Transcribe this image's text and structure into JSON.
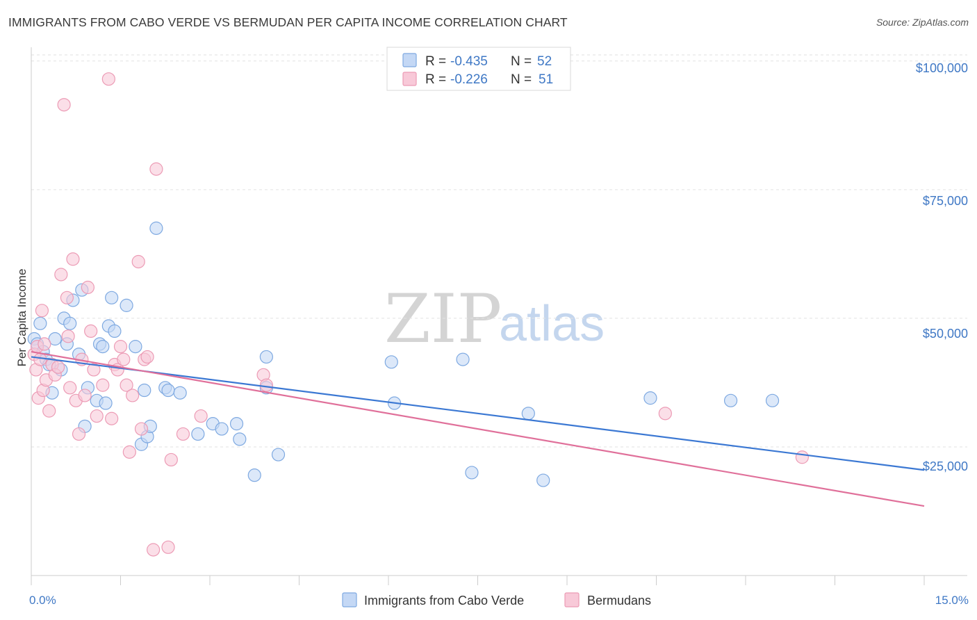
{
  "title": "IMMIGRANTS FROM CABO VERDE VS BERMUDAN PER CAPITA INCOME CORRELATION CHART",
  "source": "Source: ZipAtlas.com",
  "watermark": {
    "zip": "ZIP",
    "atlas": "atlas"
  },
  "colors": {
    "blue_fill": "#c4d8f5",
    "blue_stroke": "#7ea9e1",
    "blue_line": "#3b78d3",
    "pink_fill": "#f8c9d8",
    "pink_stroke": "#ec9bb5",
    "pink_line": "#e0709a",
    "grid": "#e2e2e2",
    "axis": "#cccccc",
    "tick_text": "#3f78c5"
  },
  "legend": {
    "rows": [
      {
        "r_label": "R =",
        "r_value": "-0.435",
        "n_label": "N =",
        "n_value": "52",
        "series": "blue"
      },
      {
        "r_label": "R =",
        "r_value": "-0.226",
        "n_label": "N =",
        "n_value": "51",
        "series": "pink"
      }
    ]
  },
  "bottom_legend": [
    "Immigrants from Cabo Verde",
    "Bermudans"
  ],
  "chart_data": {
    "type": "scatter",
    "title": "IMMIGRANTS FROM CABO VERDE VS BERMUDAN PER CAPITA INCOME CORRELATION CHART",
    "xlabel": "",
    "ylabel": "Per Capita Income",
    "xlim": [
      0,
      15
    ],
    "ylim": [
      0,
      102000
    ],
    "x_tick_labels": [
      "0.0%",
      "15.0%"
    ],
    "y_ticks": [
      25000,
      50000,
      75000,
      100000
    ],
    "y_tick_labels": [
      "$25,000",
      "$50,000",
      "$75,000",
      "$100,000"
    ],
    "series": [
      {
        "name": "Immigrants from Cabo Verde",
        "color": "blue",
        "trend": {
          "x0": 0,
          "y0": 42500,
          "x1": 15,
          "y1": 20500
        },
        "points": [
          [
            0.05,
            46000
          ],
          [
            0.1,
            45000
          ],
          [
            0.15,
            49000
          ],
          [
            0.2,
            43500
          ],
          [
            0.25,
            42000
          ],
          [
            0.3,
            41000
          ],
          [
            0.35,
            35500
          ],
          [
            0.4,
            46000
          ],
          [
            0.5,
            40000
          ],
          [
            0.55,
            50000
          ],
          [
            0.6,
            45000
          ],
          [
            0.65,
            49000
          ],
          [
            0.7,
            53500
          ],
          [
            0.8,
            43000
          ],
          [
            0.85,
            55500
          ],
          [
            0.9,
            29000
          ],
          [
            0.95,
            36500
          ],
          [
            1.1,
            34000
          ],
          [
            1.15,
            45000
          ],
          [
            1.2,
            44500
          ],
          [
            1.25,
            33500
          ],
          [
            1.3,
            48500
          ],
          [
            1.35,
            54000
          ],
          [
            1.4,
            47500
          ],
          [
            1.6,
            52500
          ],
          [
            1.75,
            44500
          ],
          [
            1.85,
            25500
          ],
          [
            1.9,
            36000
          ],
          [
            1.95,
            27000
          ],
          [
            2.0,
            29000
          ],
          [
            2.1,
            67500
          ],
          [
            2.25,
            36500
          ],
          [
            2.3,
            36000
          ],
          [
            2.5,
            35500
          ],
          [
            2.8,
            27500
          ],
          [
            3.05,
            29500
          ],
          [
            3.2,
            28500
          ],
          [
            3.45,
            29500
          ],
          [
            3.5,
            26500
          ],
          [
            3.75,
            19500
          ],
          [
            3.95,
            42500
          ],
          [
            3.95,
            36500
          ],
          [
            4.15,
            23500
          ],
          [
            6.05,
            41500
          ],
          [
            6.1,
            33500
          ],
          [
            7.25,
            42000
          ],
          [
            7.4,
            20000
          ],
          [
            8.35,
            31500
          ],
          [
            8.6,
            18500
          ],
          [
            10.4,
            34500
          ],
          [
            11.75,
            34000
          ],
          [
            12.45,
            34000
          ]
        ]
      },
      {
        "name": "Bermudans",
        "color": "pink",
        "trend": {
          "x0": 0,
          "y0": 43500,
          "x1": 15,
          "y1": 13500
        },
        "points": [
          [
            0.05,
            43000
          ],
          [
            0.08,
            40000
          ],
          [
            0.1,
            44500
          ],
          [
            0.12,
            34500
          ],
          [
            0.15,
            42000
          ],
          [
            0.18,
            51500
          ],
          [
            0.2,
            36000
          ],
          [
            0.22,
            45000
          ],
          [
            0.25,
            38000
          ],
          [
            0.3,
            32000
          ],
          [
            0.35,
            41000
          ],
          [
            0.4,
            39000
          ],
          [
            0.45,
            40500
          ],
          [
            0.5,
            58500
          ],
          [
            0.55,
            91500
          ],
          [
            0.6,
            54000
          ],
          [
            0.62,
            46500
          ],
          [
            0.65,
            36500
          ],
          [
            0.7,
            61500
          ],
          [
            0.75,
            34000
          ],
          [
            0.8,
            27500
          ],
          [
            0.85,
            42000
          ],
          [
            0.9,
            35000
          ],
          [
            0.95,
            56000
          ],
          [
            1.0,
            47500
          ],
          [
            1.05,
            40000
          ],
          [
            1.1,
            31000
          ],
          [
            1.2,
            37000
          ],
          [
            1.3,
            96500
          ],
          [
            1.35,
            30500
          ],
          [
            1.4,
            41000
          ],
          [
            1.45,
            40000
          ],
          [
            1.5,
            44500
          ],
          [
            1.55,
            42000
          ],
          [
            1.6,
            37000
          ],
          [
            1.65,
            24000
          ],
          [
            1.7,
            35000
          ],
          [
            1.8,
            61000
          ],
          [
            1.85,
            28500
          ],
          [
            1.9,
            42000
          ],
          [
            1.95,
            42500
          ],
          [
            2.05,
            5000
          ],
          [
            2.1,
            79000
          ],
          [
            2.3,
            5500
          ],
          [
            2.35,
            22500
          ],
          [
            2.55,
            27500
          ],
          [
            2.85,
            31000
          ],
          [
            3.9,
            39000
          ],
          [
            3.95,
            37000
          ],
          [
            10.65,
            31500
          ],
          [
            12.95,
            23000
          ]
        ]
      }
    ]
  }
}
